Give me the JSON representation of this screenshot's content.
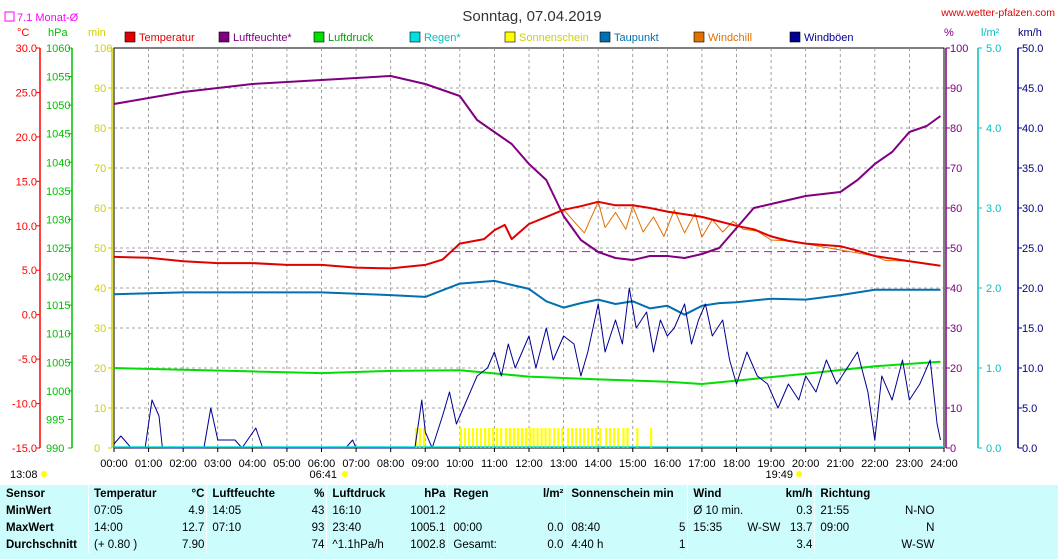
{
  "title": "Sonntag, 07.04.2019",
  "site": "www.wetter-pfalzen.com",
  "monthly_label": "7.1 Monat-Ø",
  "axis_units": {
    "temp": "°C",
    "hpa": "hPa",
    "min": "min",
    "pct": "%",
    "rain": "l/m²",
    "kmh": "km/h"
  },
  "legend": [
    {
      "name": "Temperatur",
      "color": "#e00000"
    },
    {
      "name": "Luftfeuchte*",
      "color": "#800080"
    },
    {
      "name": "Luftdruck",
      "color": "#00e000"
    },
    {
      "name": "Regen*",
      "color": "#00e0e0"
    },
    {
      "name": "Sonnenschein",
      "color": "#ffff00"
    },
    {
      "name": "Taupunkt",
      "color": "#0070b0"
    },
    {
      "name": "Windchill",
      "color": "#e07000"
    },
    {
      "name": "Windböen",
      "color": "#000090"
    }
  ],
  "sunrise": "06:41",
  "sunset": "19:49",
  "footer_time": "13:08",
  "chart_data": {
    "type": "line",
    "x_unit": "hours",
    "x_ticks": [
      "00:00",
      "01:00",
      "02:00",
      "03:00",
      "04:00",
      "05:00",
      "06:00",
      "07:00",
      "08:00",
      "09:00",
      "10:00",
      "11:00",
      "12:00",
      "13:00",
      "14:00",
      "15:00",
      "16:00",
      "17:00",
      "18:00",
      "19:00",
      "20:00",
      "21:00",
      "22:00",
      "23:00",
      "24:00"
    ],
    "axes": {
      "temp": {
        "range": [
          -15,
          30
        ],
        "ticks": [
          "30.0",
          "25.0",
          "20.0",
          "15.0",
          "10.0",
          "5.0",
          "0.0",
          "-5.0",
          "-10.0",
          "-15.0"
        ],
        "color": "#ff0000"
      },
      "hpa": {
        "range": [
          990,
          1060
        ],
        "ticks": [
          "1060",
          "1055",
          "1050",
          "1045",
          "1040",
          "1035",
          "1030",
          "1025",
          "1020",
          "1015",
          "1010",
          "1005",
          "1000",
          "995",
          "990"
        ],
        "color": "#00c000"
      },
      "min": {
        "range": [
          0,
          100
        ],
        "ticks": [
          "100",
          "90",
          "80",
          "70",
          "60",
          "50",
          "40",
          "30",
          "20",
          "10",
          "0"
        ],
        "color": "#d0d000"
      },
      "pct": {
        "range": [
          0,
          100
        ],
        "ticks": [
          "100",
          "90",
          "80",
          "70",
          "60",
          "50",
          "40",
          "30",
          "20",
          "10",
          "0"
        ],
        "color": "#800080"
      },
      "rain": {
        "range": [
          0,
          5
        ],
        "ticks": [
          "5.0",
          "4.0",
          "3.0",
          "2.0",
          "1.0",
          "0.0"
        ],
        "color": "#00c0c0"
      },
      "kmh": {
        "range": [
          0,
          50
        ],
        "ticks": [
          "50.0",
          "45.0",
          "40.0",
          "35.0",
          "30.0",
          "25.0",
          "20.0",
          "15.0",
          "10.0",
          "5.0",
          "0.0"
        ],
        "color": "#000080"
      }
    },
    "monthly_avg_temp": 7.1,
    "series": [
      {
        "name": "Temperatur",
        "axis": "temp",
        "points": [
          [
            0,
            6.5
          ],
          [
            1,
            6.4
          ],
          [
            2,
            6.0
          ],
          [
            3,
            5.8
          ],
          [
            4,
            5.8
          ],
          [
            5,
            5.6
          ],
          [
            6,
            5.6
          ],
          [
            7,
            5.3
          ],
          [
            8,
            5.2
          ],
          [
            9,
            5.6
          ],
          [
            9.5,
            6.2
          ],
          [
            10,
            8.0
          ],
          [
            10.7,
            8.5
          ],
          [
            11,
            9.5
          ],
          [
            11.3,
            10.1
          ],
          [
            11.5,
            8.5
          ],
          [
            12,
            10.2
          ],
          [
            12.5,
            11.0
          ],
          [
            13,
            11.8
          ],
          [
            13.5,
            12.2
          ],
          [
            14,
            12.7
          ],
          [
            14.5,
            12.3
          ],
          [
            15,
            12.3
          ],
          [
            15.5,
            12.0
          ],
          [
            16,
            11.6
          ],
          [
            17,
            11.0
          ],
          [
            18,
            10.0
          ],
          [
            18.5,
            9.6
          ],
          [
            19,
            8.8
          ],
          [
            19.5,
            8.3
          ],
          [
            20,
            8.0
          ],
          [
            21,
            7.7
          ],
          [
            21.5,
            7.2
          ],
          [
            22,
            6.6
          ],
          [
            23,
            6.0
          ],
          [
            23.9,
            5.5
          ]
        ]
      },
      {
        "name": "Windchill",
        "axis": "temp",
        "points": [
          [
            13,
            11.8
          ],
          [
            13.6,
            9.2
          ],
          [
            14,
            12.7
          ],
          [
            14.2,
            9.8
          ],
          [
            14.5,
            11.5
          ],
          [
            14.8,
            9.6
          ],
          [
            15,
            12.2
          ],
          [
            15.3,
            9.3
          ],
          [
            15.6,
            11.0
          ],
          [
            15.9,
            8.8
          ],
          [
            16.2,
            11.8
          ],
          [
            16.5,
            9.2
          ],
          [
            16.8,
            11.4
          ],
          [
            17.0,
            8.7
          ],
          [
            17.3,
            10.7
          ],
          [
            17.6,
            9.3
          ],
          [
            17.9,
            10.5
          ],
          [
            18.2,
            9.6
          ],
          [
            18.6,
            9.4
          ],
          [
            19,
            8.4
          ],
          [
            19.5,
            8.3
          ],
          [
            22.0,
            6.6
          ],
          [
            22.3,
            6.1
          ],
          [
            23,
            6.0
          ],
          [
            23.9,
            5.5
          ]
        ]
      },
      {
        "name": "Luftfeuchte*",
        "axis": "pct",
        "points": [
          [
            0,
            86
          ],
          [
            1,
            87.5
          ],
          [
            2,
            89
          ],
          [
            3,
            90
          ],
          [
            4,
            91
          ],
          [
            5,
            91.5
          ],
          [
            6,
            92
          ],
          [
            7,
            92.5
          ],
          [
            8,
            93
          ],
          [
            9,
            91
          ],
          [
            10,
            88
          ],
          [
            10.5,
            82
          ],
          [
            11,
            79
          ],
          [
            11.5,
            76
          ],
          [
            12,
            71
          ],
          [
            12.5,
            67
          ],
          [
            13,
            58
          ],
          [
            13.5,
            52
          ],
          [
            14,
            49
          ],
          [
            14.5,
            47.5
          ],
          [
            15,
            47
          ],
          [
            15.5,
            48
          ],
          [
            16,
            48
          ],
          [
            16.5,
            47.5
          ],
          [
            17,
            48.5
          ],
          [
            17.5,
            50
          ],
          [
            18,
            55
          ],
          [
            18.5,
            60
          ],
          [
            19,
            61
          ],
          [
            19.5,
            62
          ],
          [
            20,
            63
          ],
          [
            21,
            64
          ],
          [
            21.5,
            67
          ],
          [
            22,
            71
          ],
          [
            22.5,
            74
          ],
          [
            23,
            79
          ],
          [
            23.5,
            80.5
          ],
          [
            23.9,
            83
          ]
        ]
      },
      {
        "name": "Luftdruck",
        "axis": "hpa",
        "points": [
          [
            0,
            1004.0
          ],
          [
            2,
            1003.7
          ],
          [
            4,
            1003.4
          ],
          [
            6,
            1003.1
          ],
          [
            8,
            1003.5
          ],
          [
            10,
            1003.6
          ],
          [
            12,
            1002.5
          ],
          [
            14,
            1002.0
          ],
          [
            16,
            1001.6
          ],
          [
            17,
            1001.2
          ],
          [
            18,
            1001.8
          ],
          [
            20,
            1003.0
          ],
          [
            22,
            1004.3
          ],
          [
            23.9,
            1005.1
          ]
        ]
      },
      {
        "name": "Taupunkt",
        "axis": "temp",
        "points": [
          [
            0,
            2.3
          ],
          [
            2,
            2.5
          ],
          [
            4,
            2.5
          ],
          [
            6,
            2.5
          ],
          [
            8,
            2.2
          ],
          [
            9,
            2.0
          ],
          [
            10,
            3.5
          ],
          [
            11,
            3.8
          ],
          [
            12,
            2.9
          ],
          [
            12.5,
            1.5
          ],
          [
            13,
            0.8
          ],
          [
            13.5,
            1.3
          ],
          [
            14,
            1.7
          ],
          [
            14.5,
            1.2
          ],
          [
            15,
            1.5
          ],
          [
            15.5,
            0.7
          ],
          [
            16,
            1.0
          ],
          [
            16.5,
            0.0
          ],
          [
            17,
            1.0
          ],
          [
            17.5,
            1.3
          ],
          [
            18,
            1.4
          ],
          [
            19,
            1.8
          ],
          [
            20,
            1.7
          ],
          [
            21,
            2.2
          ],
          [
            22,
            2.8
          ],
          [
            23,
            2.8
          ],
          [
            23.9,
            2.8
          ]
        ]
      },
      {
        "name": "Windböen",
        "axis": "kmh",
        "points": [
          [
            0,
            0.5
          ],
          [
            0.2,
            1.5
          ],
          [
            0.5,
            0
          ],
          [
            0.9,
            0
          ],
          [
            1.1,
            6
          ],
          [
            1.3,
            4
          ],
          [
            1.4,
            0
          ],
          [
            2.6,
            0
          ],
          [
            2.8,
            5
          ],
          [
            3.0,
            1
          ],
          [
            3.5,
            1
          ],
          [
            3.7,
            0
          ],
          [
            4.1,
            2.5
          ],
          [
            4.3,
            0
          ],
          [
            6.7,
            0
          ],
          [
            6.9,
            1
          ],
          [
            7.0,
            0
          ],
          [
            8.7,
            0
          ],
          [
            8.9,
            6
          ],
          [
            9.0,
            2
          ],
          [
            9.2,
            0
          ],
          [
            9.5,
            4
          ],
          [
            9.7,
            7
          ],
          [
            9.9,
            3
          ],
          [
            10.2,
            6
          ],
          [
            10.5,
            9
          ],
          [
            10.8,
            10
          ],
          [
            11,
            12
          ],
          [
            11.2,
            9
          ],
          [
            11.4,
            13
          ],
          [
            11.6,
            10
          ],
          [
            11.8,
            12
          ],
          [
            12,
            14
          ],
          [
            12.2,
            10
          ],
          [
            12.5,
            15
          ],
          [
            12.7,
            11
          ],
          [
            13,
            14
          ],
          [
            13.3,
            13
          ],
          [
            13.5,
            9
          ],
          [
            13.7,
            12
          ],
          [
            14,
            18
          ],
          [
            14.2,
            12
          ],
          [
            14.5,
            16
          ],
          [
            14.7,
            13
          ],
          [
            14.9,
            20
          ],
          [
            15.1,
            15
          ],
          [
            15.4,
            17
          ],
          [
            15.6,
            12
          ],
          [
            15.8,
            16
          ],
          [
            16,
            14
          ],
          [
            16.2,
            15
          ],
          [
            16.5,
            18
          ],
          [
            16.7,
            13
          ],
          [
            16.9,
            16
          ],
          [
            17.1,
            18
          ],
          [
            17.3,
            14
          ],
          [
            17.6,
            16
          ],
          [
            17.8,
            11
          ],
          [
            18,
            8
          ],
          [
            18.3,
            12
          ],
          [
            18.6,
            9
          ],
          [
            18.9,
            8
          ],
          [
            19.2,
            5
          ],
          [
            19.5,
            8
          ],
          [
            19.8,
            6
          ],
          [
            20,
            9
          ],
          [
            20.3,
            7
          ],
          [
            20.6,
            11
          ],
          [
            20.9,
            8
          ],
          [
            21.2,
            10
          ],
          [
            21.5,
            12
          ],
          [
            21.8,
            7
          ],
          [
            22.0,
            1
          ],
          [
            22.2,
            9
          ],
          [
            22.5,
            6
          ],
          [
            22.8,
            11
          ],
          [
            23,
            6
          ],
          [
            23.3,
            8
          ],
          [
            23.6,
            11
          ],
          [
            23.8,
            3
          ],
          [
            23.9,
            1
          ]
        ]
      }
    ],
    "sunshine_bars": [
      [
        8.7,
        9.0
      ],
      [
        10.0,
        10.6
      ],
      [
        10.7,
        11.2
      ],
      [
        11.3,
        12.0
      ],
      [
        12.1,
        12.6
      ],
      [
        12.7,
        13.0
      ],
      [
        13.1,
        14.1
      ],
      [
        14.2,
        14.6
      ],
      [
        14.7,
        14.9
      ],
      [
        15.1,
        15.2
      ],
      [
        15.5,
        15.6
      ]
    ]
  },
  "stats": {
    "headers": {
      "sensor": "Sensor",
      "temp": "Temperatur",
      "temp_u": "°C",
      "hum": "Luftfeuchte",
      "hum_u": "%",
      "press": "Luftdruck",
      "press_u": "hPa",
      "rain": "Regen",
      "rain_u": "l/m²",
      "sun": "Sonnenschein min",
      "wind": "Wind",
      "wind_u": "km/h",
      "dir": "Richtung"
    },
    "rows": [
      {
        "label": "MinWert",
        "t_time": "07:05",
        "t_val": "4.9",
        "h_time": "14:05",
        "h_val": "43",
        "p_time": "16:10",
        "p_val": "1001.2",
        "r_time": "",
        "r_val": "",
        "s_time": "",
        "s_val": "",
        "w_time": "Ø 10 min.",
        "w_dir": "",
        "w_val": "0.3",
        "d_time": "21:55",
        "d_val": "N-NO"
      },
      {
        "label": "MaxWert",
        "t_time": "14:00",
        "t_val": "12.7",
        "h_time": "07:10",
        "h_val": "93",
        "p_time": "23:40",
        "p_val": "1005.1",
        "r_time": "00:00",
        "r_val": "0.0",
        "s_time": "08:40",
        "s_val": "5",
        "w_time": "15:35",
        "w_dir": "W-SW",
        "w_val": "13.7",
        "d_time": "09:00",
        "d_val": "N"
      },
      {
        "label": "Durchschnitt",
        "t_time": "(+ 0.80 )",
        "t_val": "7.90",
        "h_time": "",
        "h_val": "74",
        "p_time": "^1.1hPa/h",
        "p_val": "1002.8",
        "r_time": "Gesamt:",
        "r_val": "0.0",
        "s_time": "4:40 h",
        "s_val": "1",
        "w_time": "",
        "w_dir": "",
        "w_val": "3.4",
        "d_time": "",
        "d_val": "W-SW"
      }
    ]
  }
}
